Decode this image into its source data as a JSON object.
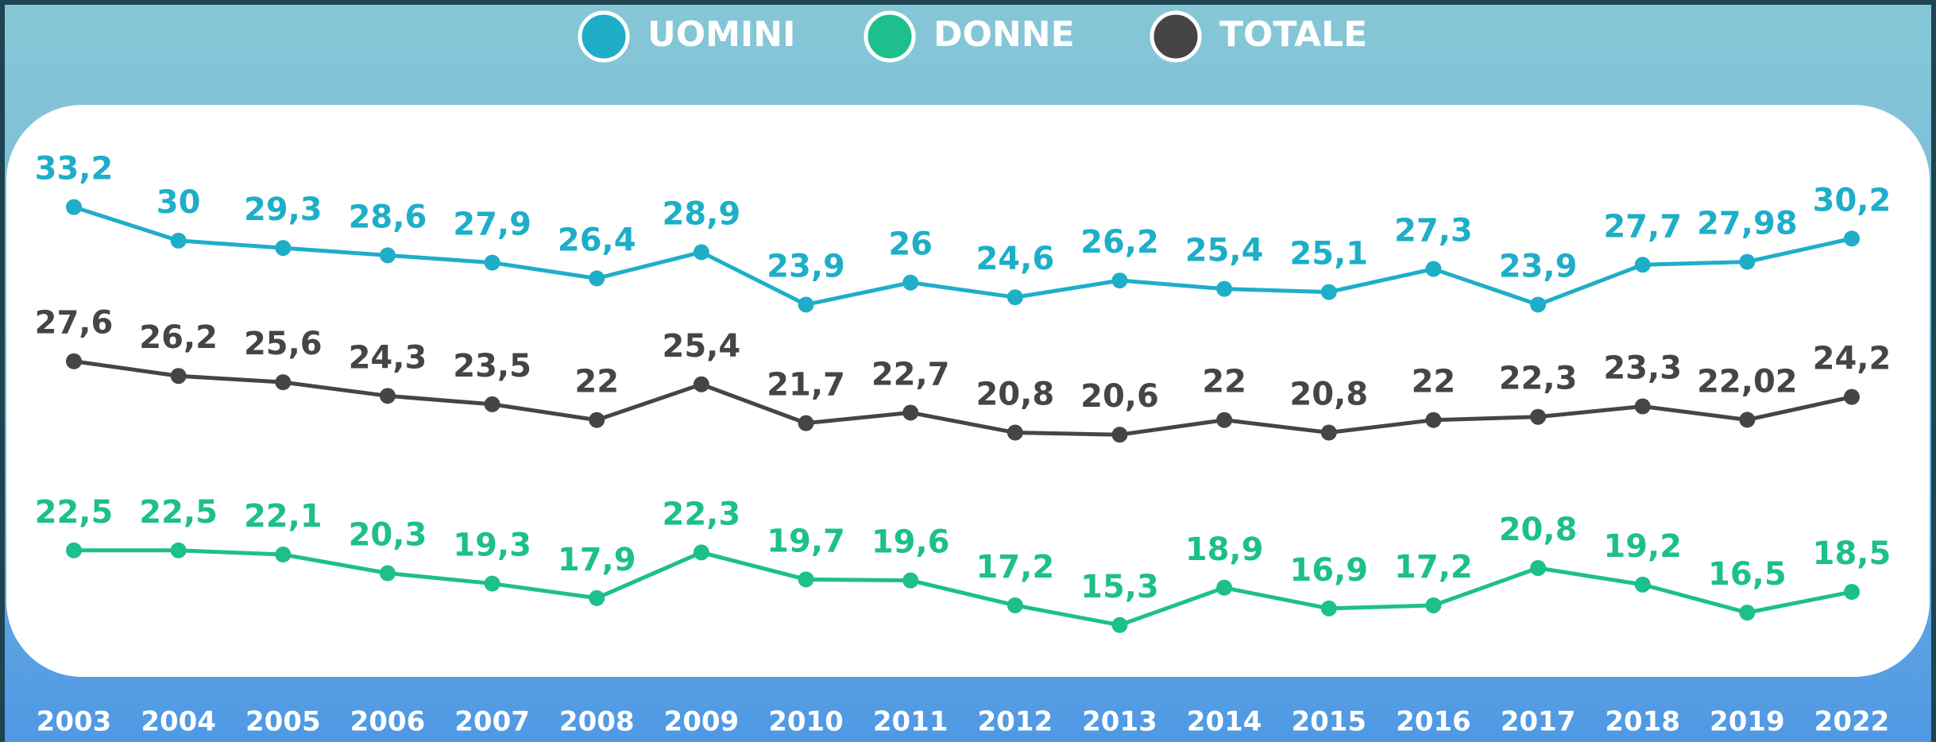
{
  "chart_data": {
    "type": "line",
    "categories": [
      "2003",
      "2004",
      "2005",
      "2006",
      "2007",
      "2008",
      "2009",
      "2010",
      "2011",
      "2012",
      "2013",
      "2014",
      "2015",
      "2016",
      "2017",
      "2018",
      "2019",
      "2022"
    ],
    "series": [
      {
        "name": "UOMINI",
        "color": "#1eaec8",
        "ylim": [
          -10.6,
          41.2
        ],
        "values": [
          33.2,
          30,
          29.3,
          28.6,
          27.9,
          26.4,
          28.9,
          23.9,
          26,
          24.6,
          26.2,
          25.4,
          25.1,
          27.3,
          23.9,
          27.7,
          27.98,
          30.2
        ],
        "value_labels": [
          "33,2",
          "30",
          "29,3",
          "28,6",
          "27,9",
          "26,4",
          "28,9",
          "23,9",
          "26",
          "24,6",
          "26,2",
          "25,4",
          "25,1",
          "27,3",
          "23,9",
          "27,7",
          "27,98",
          "30,2"
        ]
      },
      {
        "name": "DONNE",
        "color": "#1dbf8c",
        "ylim": [
          11.3,
          63.7
        ],
        "values": [
          22.5,
          22.5,
          22.1,
          20.3,
          19.3,
          17.9,
          22.3,
          19.7,
          19.6,
          17.2,
          15.3,
          18.9,
          16.9,
          17.2,
          20.8,
          19.2,
          16.5,
          18.5
        ],
        "value_labels": [
          "22,5",
          "22,5",
          "22,1",
          "20,3",
          "19,3",
          "17,9",
          "22,3",
          "19,7",
          "19,6",
          "17,2",
          "15,3",
          "18,9",
          "16,9",
          "17,2",
          "20,8",
          "19,2",
          "16,5",
          "18,5"
        ]
      },
      {
        "name": "TOTALE",
        "color": "#454545",
        "ylim": [
          -1.5,
          50.3
        ],
        "values": [
          27.6,
          26.2,
          25.6,
          24.3,
          23.5,
          22,
          25.4,
          21.7,
          22.7,
          20.8,
          20.6,
          22,
          20.8,
          22,
          22.3,
          23.3,
          22.02,
          24.2
        ],
        "value_labels": [
          "27,6",
          "26,2",
          "25,6",
          "24,3",
          "23,5",
          "22",
          "25,4",
          "21,7",
          "22,7",
          "20,8",
          "20,6",
          "22",
          "20,8",
          "22",
          "22,3",
          "23,3",
          "22,02",
          "24,2"
        ]
      }
    ]
  }
}
